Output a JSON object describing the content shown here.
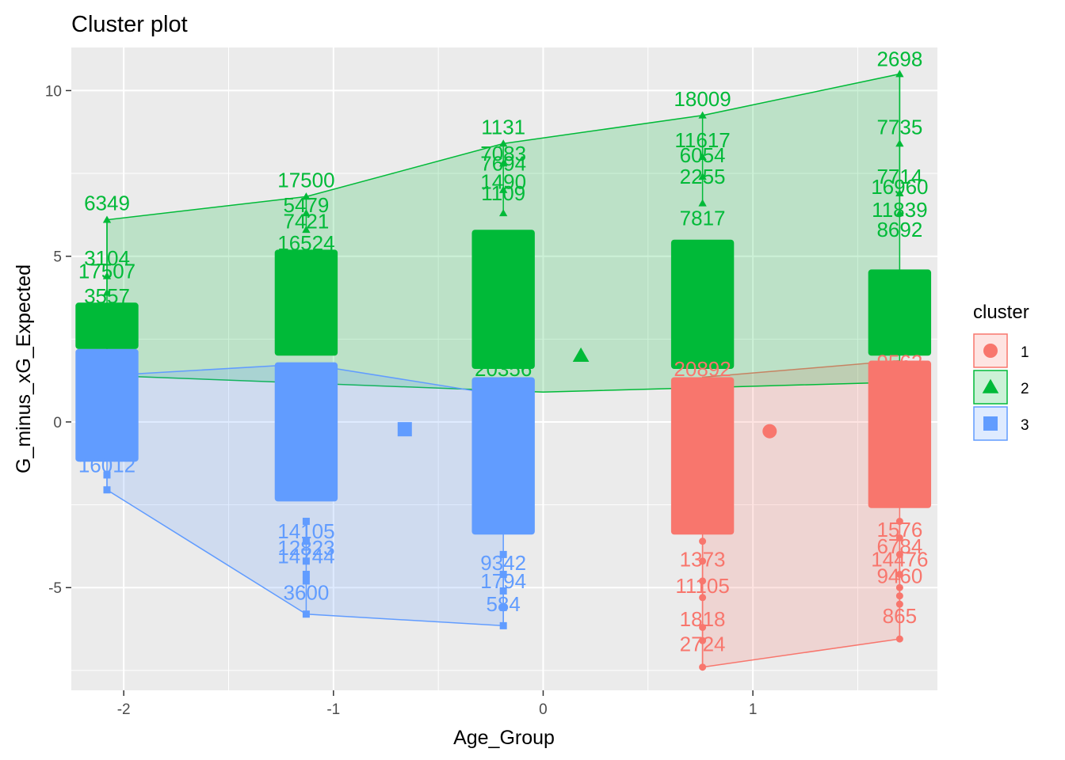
{
  "chart_data": {
    "type": "scatter",
    "title": "Cluster plot",
    "xlabel": "Age_Group",
    "ylabel": "G_minus_xG_Expected",
    "xlim": [
      -2.25,
      1.88
    ],
    "ylim": [
      -8.1,
      11.3
    ],
    "grid": true,
    "x_ticks": [
      -2,
      -1,
      0,
      1
    ],
    "x_tick_labels": [
      "-2",
      "-1",
      "0",
      "1"
    ],
    "y_ticks": [
      -5,
      0,
      5,
      10
    ],
    "y_tick_labels": [
      "-5",
      "0",
      "5",
      "10"
    ],
    "legend": {
      "title": "cluster",
      "position": "right",
      "entries": [
        {
          "label": "1",
          "color": "#F8766D",
          "shape": "circle"
        },
        {
          "label": "2",
          "color": "#00BA38",
          "shape": "triangle"
        },
        {
          "label": "3",
          "color": "#619CFF",
          "shape": "square"
        }
      ]
    },
    "series": [
      {
        "name": "1",
        "color": "#F8766D",
        "shape": "circle",
        "centroid": [
          1.08,
          -0.28
        ],
        "hull": [
          [
            0.76,
            1.35
          ],
          [
            1.7,
            1.85
          ],
          [
            1.7,
            -6.55
          ],
          [
            0.76,
            -7.4
          ]
        ],
        "bands": [
          {
            "x": 0.76,
            "y_min": -3.4,
            "y_max": 1.35,
            "spread": 0.15
          },
          {
            "x": 1.7,
            "y_min": -2.6,
            "y_max": 1.85,
            "spread": 0.15
          }
        ],
        "points": [
          {
            "x": 0.76,
            "y": -3.6
          },
          {
            "x": 0.76,
            "y": -4.2
          },
          {
            "x": 0.76,
            "y": -4.8
          },
          {
            "x": 0.76,
            "y": -5.3
          },
          {
            "x": 0.76,
            "y": -6.2
          },
          {
            "x": 0.76,
            "y": -6.6
          },
          {
            "x": 0.76,
            "y": -7.4
          },
          {
            "x": 1.7,
            "y": -3.0
          },
          {
            "x": 1.7,
            "y": -3.5
          },
          {
            "x": 1.7,
            "y": -4.0
          },
          {
            "x": 1.7,
            "y": -4.6
          },
          {
            "x": 1.7,
            "y": -5.0
          },
          {
            "x": 1.7,
            "y": -5.25
          },
          {
            "x": 1.7,
            "y": -5.5
          },
          {
            "x": 1.7,
            "y": -6.55
          }
        ],
        "labels": [
          {
            "text": "1818",
            "x": 0.76,
            "y": -6.0
          },
          {
            "text": "2724",
            "x": 0.76,
            "y": -6.75
          },
          {
            "text": "11105",
            "x": 0.76,
            "y": -5.0
          },
          {
            "text": "865",
            "x": 1.7,
            "y": -5.9
          },
          {
            "text": "9460",
            "x": 1.7,
            "y": -4.7
          },
          {
            "text": "20892",
            "x": 0.76,
            "y": 1.55
          },
          {
            "text": "1373",
            "x": 0.76,
            "y": -4.2
          },
          {
            "text": "6784",
            "x": 1.7,
            "y": -3.8
          },
          {
            "text": "14476",
            "x": 1.7,
            "y": -4.2
          },
          {
            "text": "1576",
            "x": 1.7,
            "y": -3.3
          },
          {
            "text": "9562",
            "x": 1.7,
            "y": 1.75
          }
        ]
      },
      {
        "name": "2",
        "color": "#00BA38",
        "shape": "triangle",
        "centroid": [
          0.18,
          2.0
        ],
        "hull": [
          [
            -2.08,
            6.1
          ],
          [
            -2.08,
            1.4
          ],
          [
            0.0,
            0.9
          ],
          [
            1.7,
            1.2
          ],
          [
            1.7,
            10.5
          ],
          [
            0.76,
            9.25
          ],
          [
            -0.19,
            8.4
          ],
          [
            -1.13,
            6.8
          ]
        ],
        "bands": [
          {
            "x": -2.08,
            "y_min": 2.2,
            "y_max": 3.6,
            "spread": 0.15
          },
          {
            "x": -1.13,
            "y_min": 2.0,
            "y_max": 5.2,
            "spread": 0.15
          },
          {
            "x": -0.19,
            "y_min": 1.6,
            "y_max": 5.8,
            "spread": 0.15
          },
          {
            "x": 0.76,
            "y_min": 1.6,
            "y_max": 5.5,
            "spread": 0.15
          },
          {
            "x": 1.7,
            "y_min": 2.0,
            "y_max": 4.6,
            "spread": 0.15
          }
        ],
        "points": [
          {
            "x": -2.08,
            "y": 6.1
          },
          {
            "x": -2.08,
            "y": 4.4
          },
          {
            "x": -2.08,
            "y": 3.9
          },
          {
            "x": -1.13,
            "y": 6.8
          },
          {
            "x": -1.13,
            "y": 6.3
          },
          {
            "x": -1.13,
            "y": 5.8
          },
          {
            "x": -0.19,
            "y": 8.4
          },
          {
            "x": -0.19,
            "y": 7.8
          },
          {
            "x": -0.19,
            "y": 7.0
          },
          {
            "x": -0.19,
            "y": 6.3
          },
          {
            "x": 0.76,
            "y": 9.25
          },
          {
            "x": 0.76,
            "y": 8.0
          },
          {
            "x": 0.76,
            "y": 7.4
          },
          {
            "x": 0.76,
            "y": 6.6
          },
          {
            "x": 1.7,
            "y": 10.5
          },
          {
            "x": 1.7,
            "y": 8.4
          },
          {
            "x": 1.7,
            "y": 6.9
          },
          {
            "x": 1.7,
            "y": 6.3
          }
        ],
        "labels": [
          {
            "text": "2698",
            "x": 1.7,
            "y": 10.9
          },
          {
            "text": "18009",
            "x": 0.76,
            "y": 9.7
          },
          {
            "text": "1131",
            "x": -0.19,
            "y": 8.85
          },
          {
            "text": "7735",
            "x": 1.7,
            "y": 8.85
          },
          {
            "text": "11617",
            "x": 0.76,
            "y": 8.45
          },
          {
            "text": "17500",
            "x": -1.13,
            "y": 7.25
          },
          {
            "text": "6349",
            "x": -2.08,
            "y": 6.55
          },
          {
            "text": "7714",
            "x": 1.7,
            "y": 7.35
          },
          {
            "text": "16960",
            "x": 1.7,
            "y": 7.05
          },
          {
            "text": "11839",
            "x": 1.7,
            "y": 6.35
          },
          {
            "text": "5479",
            "x": -1.13,
            "y": 6.5
          },
          {
            "text": "7421",
            "x": -1.13,
            "y": 6.0
          },
          {
            "text": "16524",
            "x": -1.13,
            "y": 5.35
          },
          {
            "text": "3104",
            "x": -2.08,
            "y": 4.9
          },
          {
            "text": "17507",
            "x": -2.08,
            "y": 4.5
          },
          {
            "text": "3557",
            "x": -2.08,
            "y": 3.75
          },
          {
            "text": "7083",
            "x": -0.19,
            "y": 8.05
          },
          {
            "text": "7694",
            "x": -0.19,
            "y": 7.75
          },
          {
            "text": "1490",
            "x": -0.19,
            "y": 7.2
          },
          {
            "text": "1109",
            "x": -0.19,
            "y": 6.85
          },
          {
            "text": "6054",
            "x": 0.76,
            "y": 8.0
          },
          {
            "text": "2255",
            "x": 0.76,
            "y": 7.35
          },
          {
            "text": "7817",
            "x": 0.76,
            "y": 6.1
          },
          {
            "text": "8692",
            "x": 1.7,
            "y": 5.75
          },
          {
            "text": "20356",
            "x": -0.19,
            "y": 1.55
          }
        ]
      },
      {
        "name": "3",
        "color": "#619CFF",
        "shape": "square",
        "centroid": [
          -0.66,
          -0.22
        ],
        "hull": [
          [
            -2.08,
            1.4
          ],
          [
            -2.08,
            -2.05
          ],
          [
            -1.13,
            -5.8
          ],
          [
            -0.19,
            -6.15
          ],
          [
            -0.19,
            0.8
          ],
          [
            -1.13,
            1.75
          ]
        ],
        "bands": [
          {
            "x": -2.08,
            "y_min": -1.2,
            "y_max": 2.2,
            "spread": 0.15
          },
          {
            "x": -1.13,
            "y_min": -2.4,
            "y_max": 1.8,
            "spread": 0.15
          },
          {
            "x": -0.19,
            "y_min": -3.4,
            "y_max": 1.35,
            "spread": 0.15
          }
        ],
        "points": [
          {
            "x": -2.08,
            "y": -1.6
          },
          {
            "x": -2.08,
            "y": -2.05
          },
          {
            "x": -1.13,
            "y": -3.0
          },
          {
            "x": -1.13,
            "y": -3.6
          },
          {
            "x": -1.13,
            "y": -4.2
          },
          {
            "x": -1.13,
            "y": -4.6
          },
          {
            "x": -1.13,
            "y": -4.8
          },
          {
            "x": -1.13,
            "y": -5.8
          },
          {
            "x": -0.19,
            "y": -4.0
          },
          {
            "x": -0.19,
            "y": -4.6
          },
          {
            "x": -0.19,
            "y": -5.1
          },
          {
            "x": -0.19,
            "y": -5.6
          },
          {
            "x": -0.19,
            "y": -6.15
          }
        ],
        "labels": [
          {
            "text": "3600",
            "x": -1.13,
            "y": -5.2
          },
          {
            "text": "584",
            "x": -0.19,
            "y": -5.55
          },
          {
            "text": "1794",
            "x": -0.19,
            "y": -4.85
          },
          {
            "text": "14744",
            "x": -1.13,
            "y": -4.1
          },
          {
            "text": "14105",
            "x": -1.13,
            "y": -3.35
          },
          {
            "text": "12823",
            "x": -1.13,
            "y": -3.85
          },
          {
            "text": "16012",
            "x": -2.08,
            "y": -1.35
          },
          {
            "text": "9342",
            "x": -0.19,
            "y": -4.3
          }
        ]
      }
    ]
  }
}
